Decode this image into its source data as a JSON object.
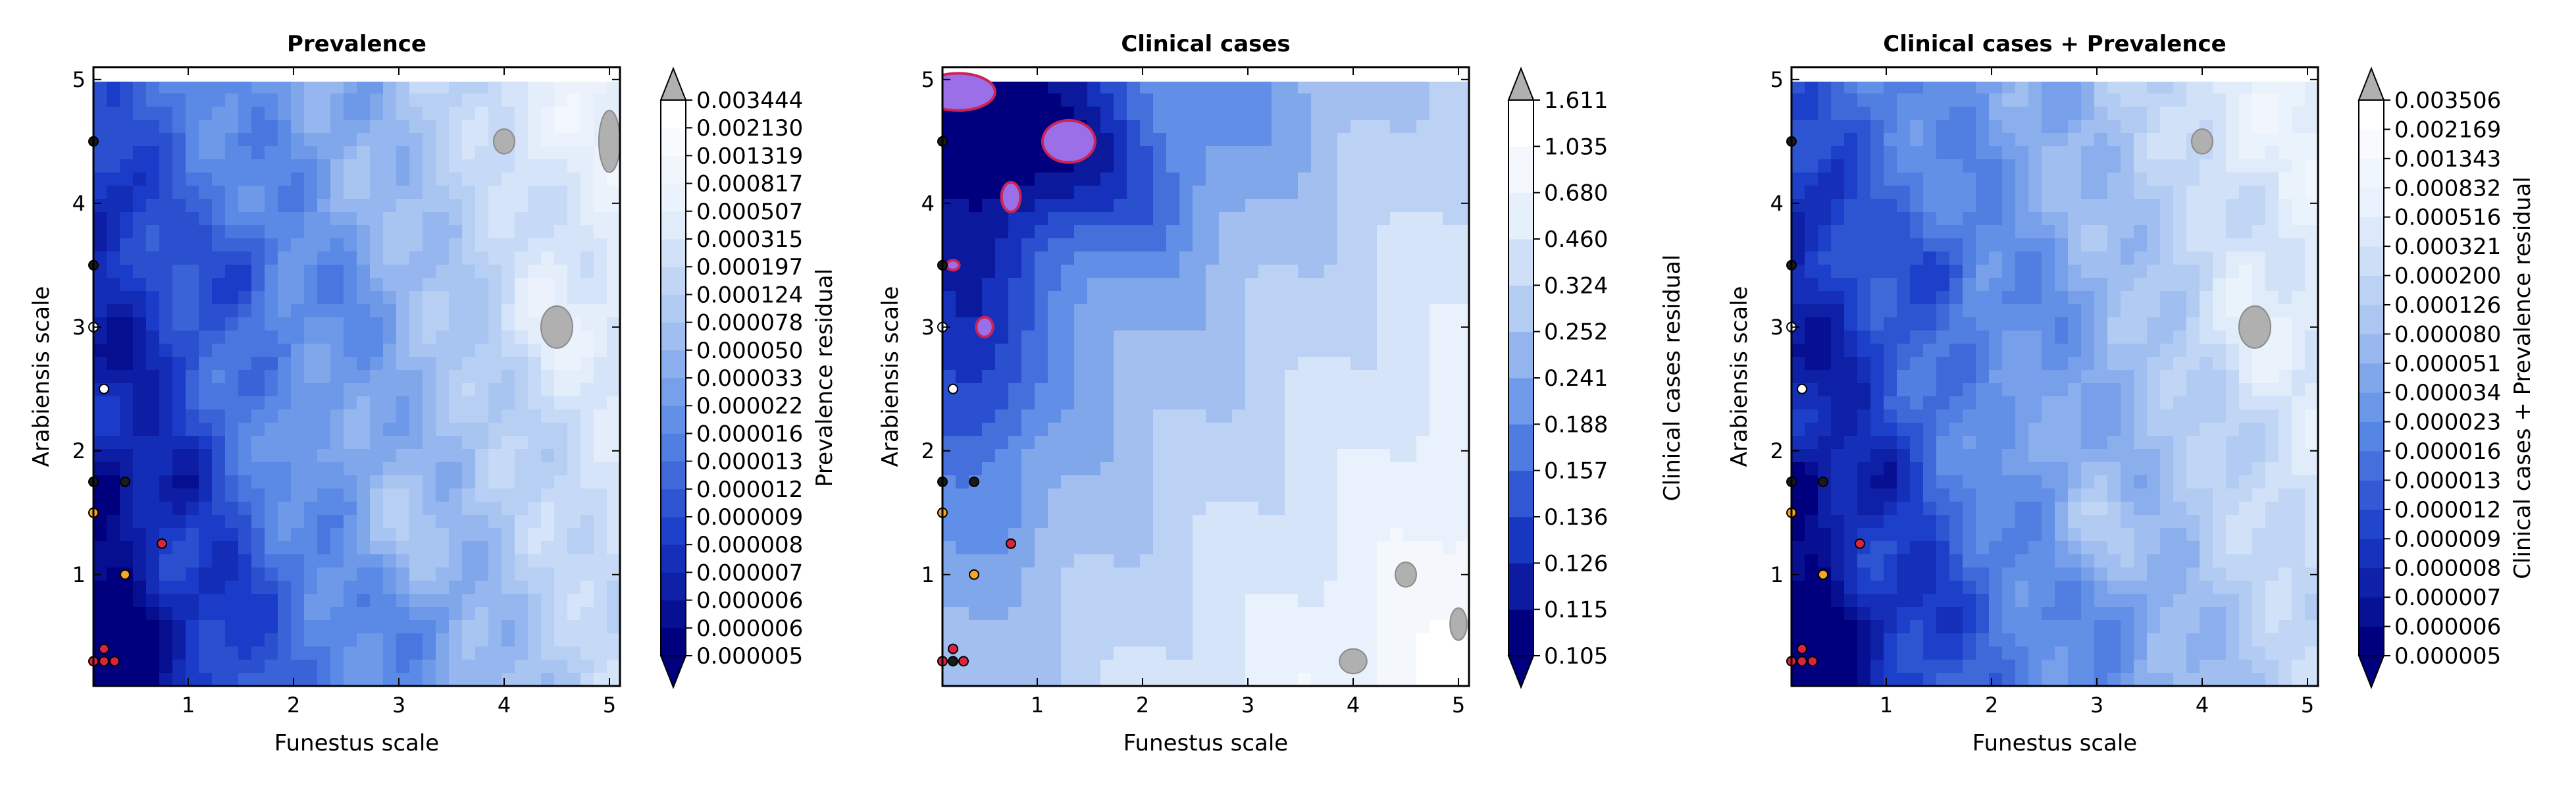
{
  "chart_data": [
    {
      "type": "heatmap",
      "title": "Prevalence",
      "xlabel": "Funestus scale",
      "ylabel": "Arabiensis scale",
      "xlim": [
        0.1,
        5.1
      ],
      "ylim": [
        0.1,
        5.1
      ],
      "xticks": [
        "1",
        "2",
        "3",
        "4",
        "5"
      ],
      "yticks": [
        "1",
        "2",
        "3",
        "4",
        "5"
      ],
      "colorbar": {
        "label": "Prevalence residual",
        "levels": [
          "0.000005",
          "0.000006",
          "0.000006",
          "0.000007",
          "0.000008",
          "0.000009",
          "0.000012",
          "0.000013",
          "0.000016",
          "0.000022",
          "0.000033",
          "0.000050",
          "0.000078",
          "0.000124",
          "0.000197",
          "0.000315",
          "0.000507",
          "0.000817",
          "0.001319",
          "0.002130",
          "0.003444"
        ]
      },
      "points": [
        {
          "x": 0.1,
          "y": 4.5,
          "color": "#1a1a1a"
        },
        {
          "x": 0.1,
          "y": 3.5,
          "color": "#1a1a1a"
        },
        {
          "x": 0.1,
          "y": 3.0,
          "color": "#ffffff"
        },
        {
          "x": 0.2,
          "y": 2.5,
          "color": "#ffffff"
        },
        {
          "x": 0.1,
          "y": 1.75,
          "color": "#1a1a1a"
        },
        {
          "x": 0.4,
          "y": 1.75,
          "color": "#1a1a1a"
        },
        {
          "x": 0.1,
          "y": 1.5,
          "color": "#f5a623"
        },
        {
          "x": 0.75,
          "y": 1.25,
          "color": "#d7263d"
        },
        {
          "x": 0.4,
          "y": 1.0,
          "color": "#f5a623"
        },
        {
          "x": 0.2,
          "y": 0.4,
          "color": "#d7263d"
        },
        {
          "x": 0.1,
          "y": 0.3,
          "color": "#d7263d"
        },
        {
          "x": 0.3,
          "y": 0.3,
          "color": "#d7263d"
        },
        {
          "x": 0.2,
          "y": 0.3,
          "color": "#d7263d"
        }
      ]
    },
    {
      "type": "heatmap",
      "title": "Clinical cases",
      "xlabel": "Funestus scale",
      "ylabel": "Arabiensis scale",
      "xlim": [
        0.1,
        5.1
      ],
      "ylim": [
        0.1,
        5.1
      ],
      "xticks": [
        "1",
        "2",
        "3",
        "4",
        "5"
      ],
      "yticks": [
        "1",
        "2",
        "3",
        "4",
        "5"
      ],
      "colorbar": {
        "label": "Clinical cases residual",
        "levels": [
          "0.105",
          "0.115",
          "0.126",
          "0.136",
          "0.157",
          "0.188",
          "0.241",
          "0.252",
          "0.324",
          "0.460",
          "0.680",
          "1.035",
          "1.611"
        ]
      },
      "points": [
        {
          "x": 0.1,
          "y": 4.5,
          "color": "#1a1a1a"
        },
        {
          "x": 0.1,
          "y": 3.5,
          "color": "#1a1a1a"
        },
        {
          "x": 0.1,
          "y": 3.0,
          "color": "#ffffff"
        },
        {
          "x": 0.2,
          "y": 2.5,
          "color": "#ffffff"
        },
        {
          "x": 0.1,
          "y": 1.75,
          "color": "#1a1a1a"
        },
        {
          "x": 0.4,
          "y": 1.75,
          "color": "#1a1a1a"
        },
        {
          "x": 0.1,
          "y": 1.5,
          "color": "#f5a623"
        },
        {
          "x": 0.75,
          "y": 1.25,
          "color": "#d7263d"
        },
        {
          "x": 0.4,
          "y": 1.0,
          "color": "#f5a623"
        },
        {
          "x": 0.2,
          "y": 0.4,
          "color": "#d7263d"
        },
        {
          "x": 0.1,
          "y": 0.3,
          "color": "#d7263d"
        },
        {
          "x": 0.3,
          "y": 0.3,
          "color": "#d7263d"
        },
        {
          "x": 0.2,
          "y": 0.3,
          "color": "#1a1a1a"
        }
      ]
    },
    {
      "type": "heatmap",
      "title": "Clinical cases + Prevalence",
      "xlabel": "Funestus scale",
      "ylabel": "Arabiensis scale",
      "xlim": [
        0.1,
        5.1
      ],
      "ylim": [
        0.1,
        5.1
      ],
      "xticks": [
        "1",
        "2",
        "3",
        "4",
        "5"
      ],
      "yticks": [
        "1",
        "2",
        "3",
        "4",
        "5"
      ],
      "colorbar": {
        "label": "Clinical cases + Prevalence residual",
        "levels": [
          "0.000005",
          "0.000006",
          "0.000007",
          "0.000008",
          "0.000009",
          "0.000012",
          "0.000013",
          "0.000016",
          "0.000023",
          "0.000034",
          "0.000051",
          "0.000080",
          "0.000126",
          "0.000200",
          "0.000321",
          "0.000516",
          "0.000832",
          "0.001343",
          "0.002169",
          "0.003506"
        ]
      },
      "points": [
        {
          "x": 0.1,
          "y": 4.5,
          "color": "#1a1a1a"
        },
        {
          "x": 0.1,
          "y": 3.5,
          "color": "#1a1a1a"
        },
        {
          "x": 0.1,
          "y": 3.0,
          "color": "#ffffff"
        },
        {
          "x": 0.2,
          "y": 2.5,
          "color": "#ffffff"
        },
        {
          "x": 0.1,
          "y": 1.75,
          "color": "#1a1a1a"
        },
        {
          "x": 0.4,
          "y": 1.75,
          "color": "#1a1a1a"
        },
        {
          "x": 0.1,
          "y": 1.5,
          "color": "#f5a623"
        },
        {
          "x": 0.75,
          "y": 1.25,
          "color": "#d7263d"
        },
        {
          "x": 0.4,
          "y": 1.0,
          "color": "#f5a623"
        },
        {
          "x": 0.2,
          "y": 0.4,
          "color": "#d7263d"
        },
        {
          "x": 0.1,
          "y": 0.3,
          "color": "#d7263d"
        },
        {
          "x": 0.3,
          "y": 0.3,
          "color": "#d7263d"
        },
        {
          "x": 0.2,
          "y": 0.3,
          "color": "#d7263d"
        }
      ]
    }
  ],
  "colors": {
    "colormap_dark": "#00007f",
    "colormap_light": "#ffffff",
    "over_color": "#b0b0b0",
    "highlight_fill": "#9b6fe8",
    "highlight_stroke": "#cc2255"
  }
}
